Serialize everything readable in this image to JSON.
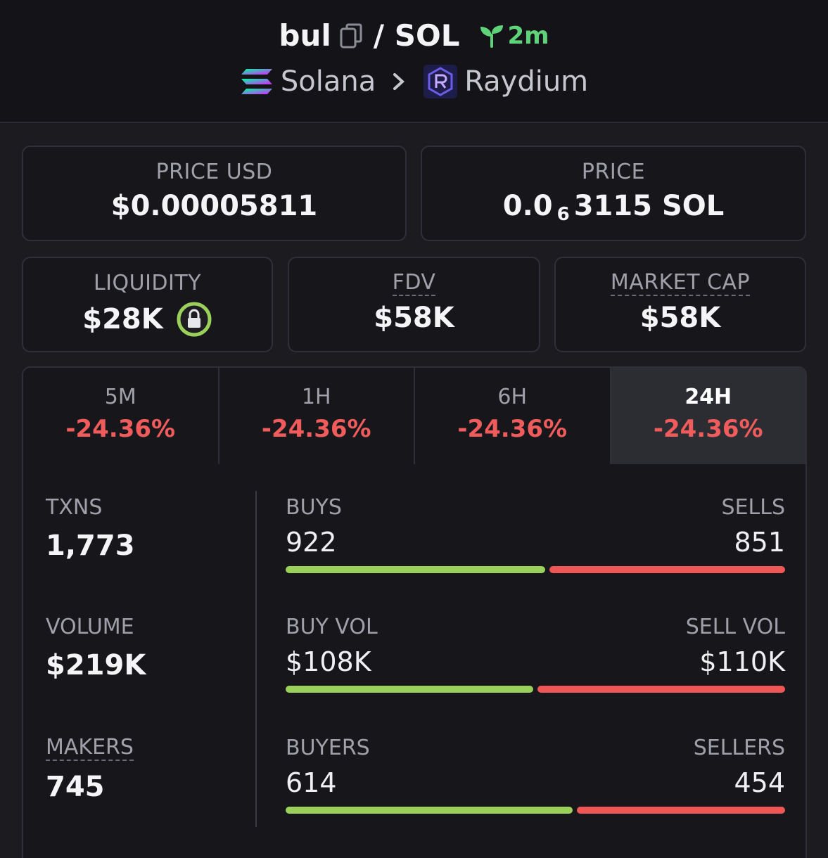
{
  "header": {
    "token": "bul",
    "quote": "/ SOL",
    "age": "2m",
    "chain": "Solana",
    "dex": "Raydium"
  },
  "price_usd": {
    "label": "PRICE USD",
    "value": "$0.00005811"
  },
  "price": {
    "label": "PRICE",
    "prefix": "0.0",
    "subscript": "6",
    "suffix": "3115 SOL"
  },
  "liquidity": {
    "label": "LIQUIDITY",
    "value": "$28K"
  },
  "fdv": {
    "label": "FDV",
    "value": "$58K"
  },
  "market_cap": {
    "label": "MARKET CAP",
    "value": "$58K"
  },
  "timeframes": [
    {
      "label": "5M",
      "change": "-24.36%"
    },
    {
      "label": "1H",
      "change": "-24.36%"
    },
    {
      "label": "6H",
      "change": "-24.36%"
    },
    {
      "label": "24H",
      "change": "-24.36%",
      "active": true
    }
  ],
  "stats": {
    "txns": {
      "label": "TXNS",
      "value": "1,773"
    },
    "volume": {
      "label": "VOLUME",
      "value": "$219K"
    },
    "makers": {
      "label": "MAKERS",
      "value": "745"
    }
  },
  "splits": {
    "txns": {
      "left_label": "BUYS",
      "right_label": "SELLS",
      "left_value": "922",
      "right_value": "851",
      "buy_fraction": 0.52
    },
    "volume": {
      "left_label": "BUY VOL",
      "right_label": "SELL VOL",
      "left_value": "$108K",
      "right_value": "$110K",
      "buy_fraction": 0.496
    },
    "makers": {
      "left_label": "BUYERS",
      "right_label": "SELLERS",
      "left_value": "614",
      "right_value": "454",
      "buy_fraction": 0.575
    }
  },
  "colors": {
    "positive": "#9bd15a",
    "negative": "#ef5757",
    "age_green": "#5fd37a",
    "lock_ring": "#9bd15a"
  }
}
